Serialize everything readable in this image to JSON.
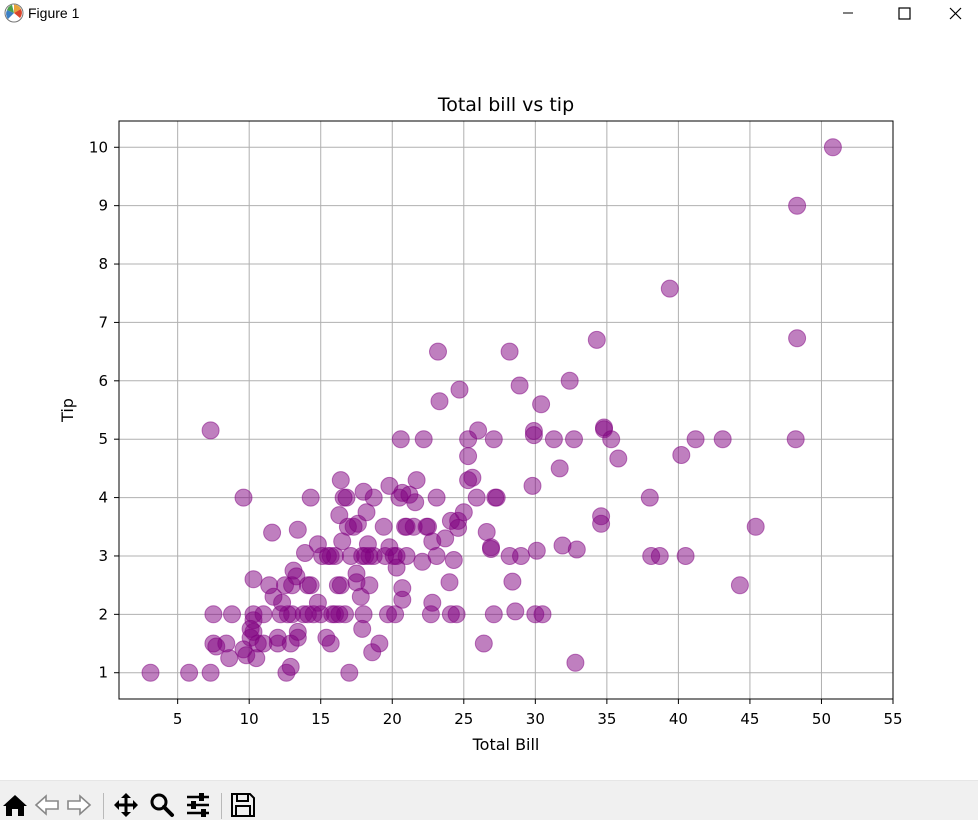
{
  "window": {
    "title": "Figure 1"
  },
  "chart_data": {
    "type": "scatter",
    "title": "Total bill vs tip",
    "xlabel": "Total Bill",
    "ylabel": "Tip",
    "xlim": [
      0.9,
      55
    ],
    "ylim": [
      0.55,
      10.45
    ],
    "xticks": [
      5,
      10,
      15,
      20,
      25,
      30,
      35,
      40,
      45,
      50,
      55
    ],
    "yticks": [
      1,
      2,
      3,
      4,
      5,
      6,
      7,
      8,
      9,
      10
    ],
    "grid": true,
    "marker_color": "#800080",
    "marker_alpha": 0.5,
    "points": [
      [
        3.1,
        1.0
      ],
      [
        5.8,
        1.0
      ],
      [
        7.3,
        1.0
      ],
      [
        7.5,
        1.5
      ],
      [
        7.7,
        1.45
      ],
      [
        8.4,
        1.5
      ],
      [
        8.6,
        1.25
      ],
      [
        8.8,
        2.0
      ],
      [
        7.5,
        2.0
      ],
      [
        7.3,
        5.15
      ],
      [
        9.6,
        4.0
      ],
      [
        9.6,
        1.4
      ],
      [
        9.8,
        1.3
      ],
      [
        10.1,
        1.6
      ],
      [
        10.3,
        1.7
      ],
      [
        10.3,
        2.6
      ],
      [
        10.5,
        1.25
      ],
      [
        10.3,
        2.0
      ],
      [
        10.6,
        1.5
      ],
      [
        10.3,
        1.9
      ],
      [
        10.1,
        1.75
      ],
      [
        11.0,
        1.5
      ],
      [
        11.0,
        2.0
      ],
      [
        11.4,
        2.5
      ],
      [
        11.6,
        3.4
      ],
      [
        11.7,
        2.3
      ],
      [
        12.0,
        1.5
      ],
      [
        12.0,
        1.6
      ],
      [
        12.2,
        2.0
      ],
      [
        12.3,
        2.2
      ],
      [
        12.5,
        2.5
      ],
      [
        12.6,
        1.0
      ],
      [
        12.7,
        2.0
      ],
      [
        12.9,
        1.1
      ],
      [
        12.9,
        1.5
      ],
      [
        13.0,
        2.0
      ],
      [
        13.0,
        2.5
      ],
      [
        13.1,
        2.75
      ],
      [
        13.3,
        2.65
      ],
      [
        13.4,
        1.6
      ],
      [
        13.4,
        3.45
      ],
      [
        13.4,
        1.7
      ],
      [
        13.8,
        2.0
      ],
      [
        13.9,
        3.05
      ],
      [
        14.1,
        2.5
      ],
      [
        14.1,
        2.0
      ],
      [
        14.3,
        2.5
      ],
      [
        14.3,
        4.0
      ],
      [
        14.5,
        2.0
      ],
      [
        14.8,
        3.2
      ],
      [
        14.8,
        2.2
      ],
      [
        15.0,
        2.0
      ],
      [
        15.1,
        3.0
      ],
      [
        15.4,
        1.6
      ],
      [
        15.5,
        3.0
      ],
      [
        15.7,
        1.5
      ],
      [
        15.7,
        3.0
      ],
      [
        15.8,
        2.0
      ],
      [
        16.0,
        3.0
      ],
      [
        16.0,
        2.0
      ],
      [
        16.2,
        2.5
      ],
      [
        16.3,
        2.0
      ],
      [
        16.3,
        3.7
      ],
      [
        16.4,
        4.3
      ],
      [
        16.4,
        2.5
      ],
      [
        16.5,
        3.25
      ],
      [
        16.6,
        4.0
      ],
      [
        16.7,
        2.0
      ],
      [
        16.8,
        4.0
      ],
      [
        16.9,
        3.5
      ],
      [
        17.0,
        1.0
      ],
      [
        17.1,
        3.0
      ],
      [
        17.3,
        3.5
      ],
      [
        17.5,
        2.7
      ],
      [
        17.6,
        3.55
      ],
      [
        17.5,
        2.55
      ],
      [
        17.8,
        2.3
      ],
      [
        17.9,
        3.0
      ],
      [
        17.9,
        1.75
      ],
      [
        18.0,
        2.0
      ],
      [
        18.0,
        4.1
      ],
      [
        18.1,
        3.0
      ],
      [
        18.2,
        3.75
      ],
      [
        18.3,
        3.2
      ],
      [
        18.4,
        3.0
      ],
      [
        18.4,
        2.5
      ],
      [
        18.6,
        1.35
      ],
      [
        18.7,
        4.0
      ],
      [
        18.7,
        3.0
      ],
      [
        19.1,
        1.5
      ],
      [
        19.4,
        3.5
      ],
      [
        19.5,
        3.0
      ],
      [
        19.7,
        2.0
      ],
      [
        19.8,
        4.2
      ],
      [
        19.8,
        3.15
      ],
      [
        20.1,
        3.0
      ],
      [
        20.2,
        2.0
      ],
      [
        20.3,
        2.8
      ],
      [
        20.3,
        3.0
      ],
      [
        20.5,
        4.0
      ],
      [
        20.6,
        5.0
      ],
      [
        20.7,
        2.45
      ],
      [
        20.7,
        4.08
      ],
      [
        20.7,
        2.25
      ],
      [
        20.9,
        3.5
      ],
      [
        21.0,
        3.0
      ],
      [
        21.0,
        3.5
      ],
      [
        21.2,
        4.05
      ],
      [
        21.5,
        3.5
      ],
      [
        21.6,
        3.92
      ],
      [
        21.7,
        4.3
      ],
      [
        22.1,
        2.9
      ],
      [
        22.2,
        5.0
      ],
      [
        22.4,
        3.5
      ],
      [
        22.5,
        3.5
      ],
      [
        22.7,
        2.0
      ],
      [
        22.8,
        3.25
      ],
      [
        22.8,
        2.2
      ],
      [
        23.1,
        4.0
      ],
      [
        23.1,
        3.0
      ],
      [
        23.2,
        6.5
      ],
      [
        23.3,
        5.65
      ],
      [
        23.7,
        3.3
      ],
      [
        24.0,
        2.55
      ],
      [
        24.1,
        3.6
      ],
      [
        24.1,
        2.0
      ],
      [
        24.3,
        2.93
      ],
      [
        24.6,
        3.48
      ],
      [
        24.5,
        2.0
      ],
      [
        24.6,
        3.6
      ],
      [
        24.7,
        5.85
      ],
      [
        25.0,
        3.75
      ],
      [
        25.3,
        4.3
      ],
      [
        25.3,
        5.0
      ],
      [
        25.3,
        4.71
      ],
      [
        25.6,
        4.34
      ],
      [
        25.9,
        4.0
      ],
      [
        26.0,
        5.15
      ],
      [
        26.4,
        1.5
      ],
      [
        26.6,
        3.41
      ],
      [
        26.9,
        3.15
      ],
      [
        26.9,
        3.12
      ],
      [
        27.1,
        5.0
      ],
      [
        27.1,
        2.0
      ],
      [
        27.2,
        4.0
      ],
      [
        27.3,
        4.0
      ],
      [
        28.2,
        6.5
      ],
      [
        28.2,
        3.0
      ],
      [
        28.4,
        2.56
      ],
      [
        28.6,
        2.05
      ],
      [
        28.9,
        5.92
      ],
      [
        29.0,
        3.0
      ],
      [
        29.8,
        4.2
      ],
      [
        29.9,
        5.07
      ],
      [
        29.9,
        5.14
      ],
      [
        30.0,
        2.0
      ],
      [
        30.1,
        3.09
      ],
      [
        30.4,
        5.6
      ],
      [
        30.5,
        2.0
      ],
      [
        31.3,
        5.0
      ],
      [
        31.7,
        4.5
      ],
      [
        31.9,
        3.18
      ],
      [
        32.4,
        6.0
      ],
      [
        32.7,
        5.0
      ],
      [
        32.8,
        1.17
      ],
      [
        32.9,
        3.11
      ],
      [
        34.3,
        6.7
      ],
      [
        34.6,
        3.55
      ],
      [
        34.6,
        3.68
      ],
      [
        34.8,
        5.2
      ],
      [
        34.8,
        5.17
      ],
      [
        35.3,
        5.0
      ],
      [
        35.8,
        4.67
      ],
      [
        38.0,
        4.0
      ],
      [
        38.1,
        3.0
      ],
      [
        38.7,
        3.0
      ],
      [
        39.4,
        7.58
      ],
      [
        40.2,
        4.73
      ],
      [
        40.5,
        3.0
      ],
      [
        41.2,
        5.0
      ],
      [
        43.1,
        5.0
      ],
      [
        44.3,
        2.5
      ],
      [
        45.4,
        3.5
      ],
      [
        48.2,
        5.0
      ],
      [
        48.3,
        6.73
      ],
      [
        48.3,
        9.0
      ],
      [
        50.8,
        10.0
      ]
    ]
  }
}
